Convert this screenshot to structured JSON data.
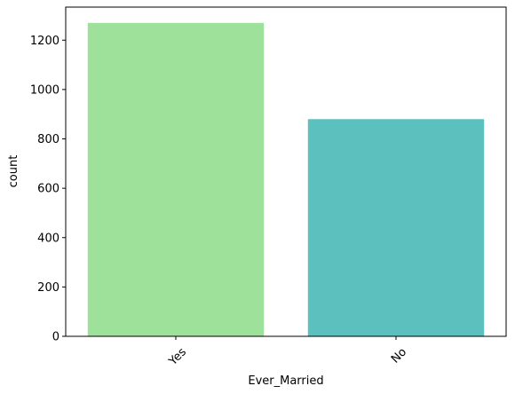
{
  "chart_data": {
    "type": "bar",
    "title": "",
    "xlabel": "Ever_Married",
    "ylabel": "count",
    "categories": [
      "Yes",
      "No"
    ],
    "values": [
      1270,
      880
    ],
    "colors": [
      "#9de19a",
      "#5bc0be"
    ],
    "ylim": [
      0,
      1334
    ],
    "yticks": [
      0,
      200,
      400,
      600,
      800,
      1000,
      1200
    ],
    "ytick_labels": [
      "0",
      "200",
      "400",
      "600",
      "800",
      "1000",
      "1200"
    ],
    "xtick_rotation": 45,
    "grid": false,
    "legend": "none"
  }
}
